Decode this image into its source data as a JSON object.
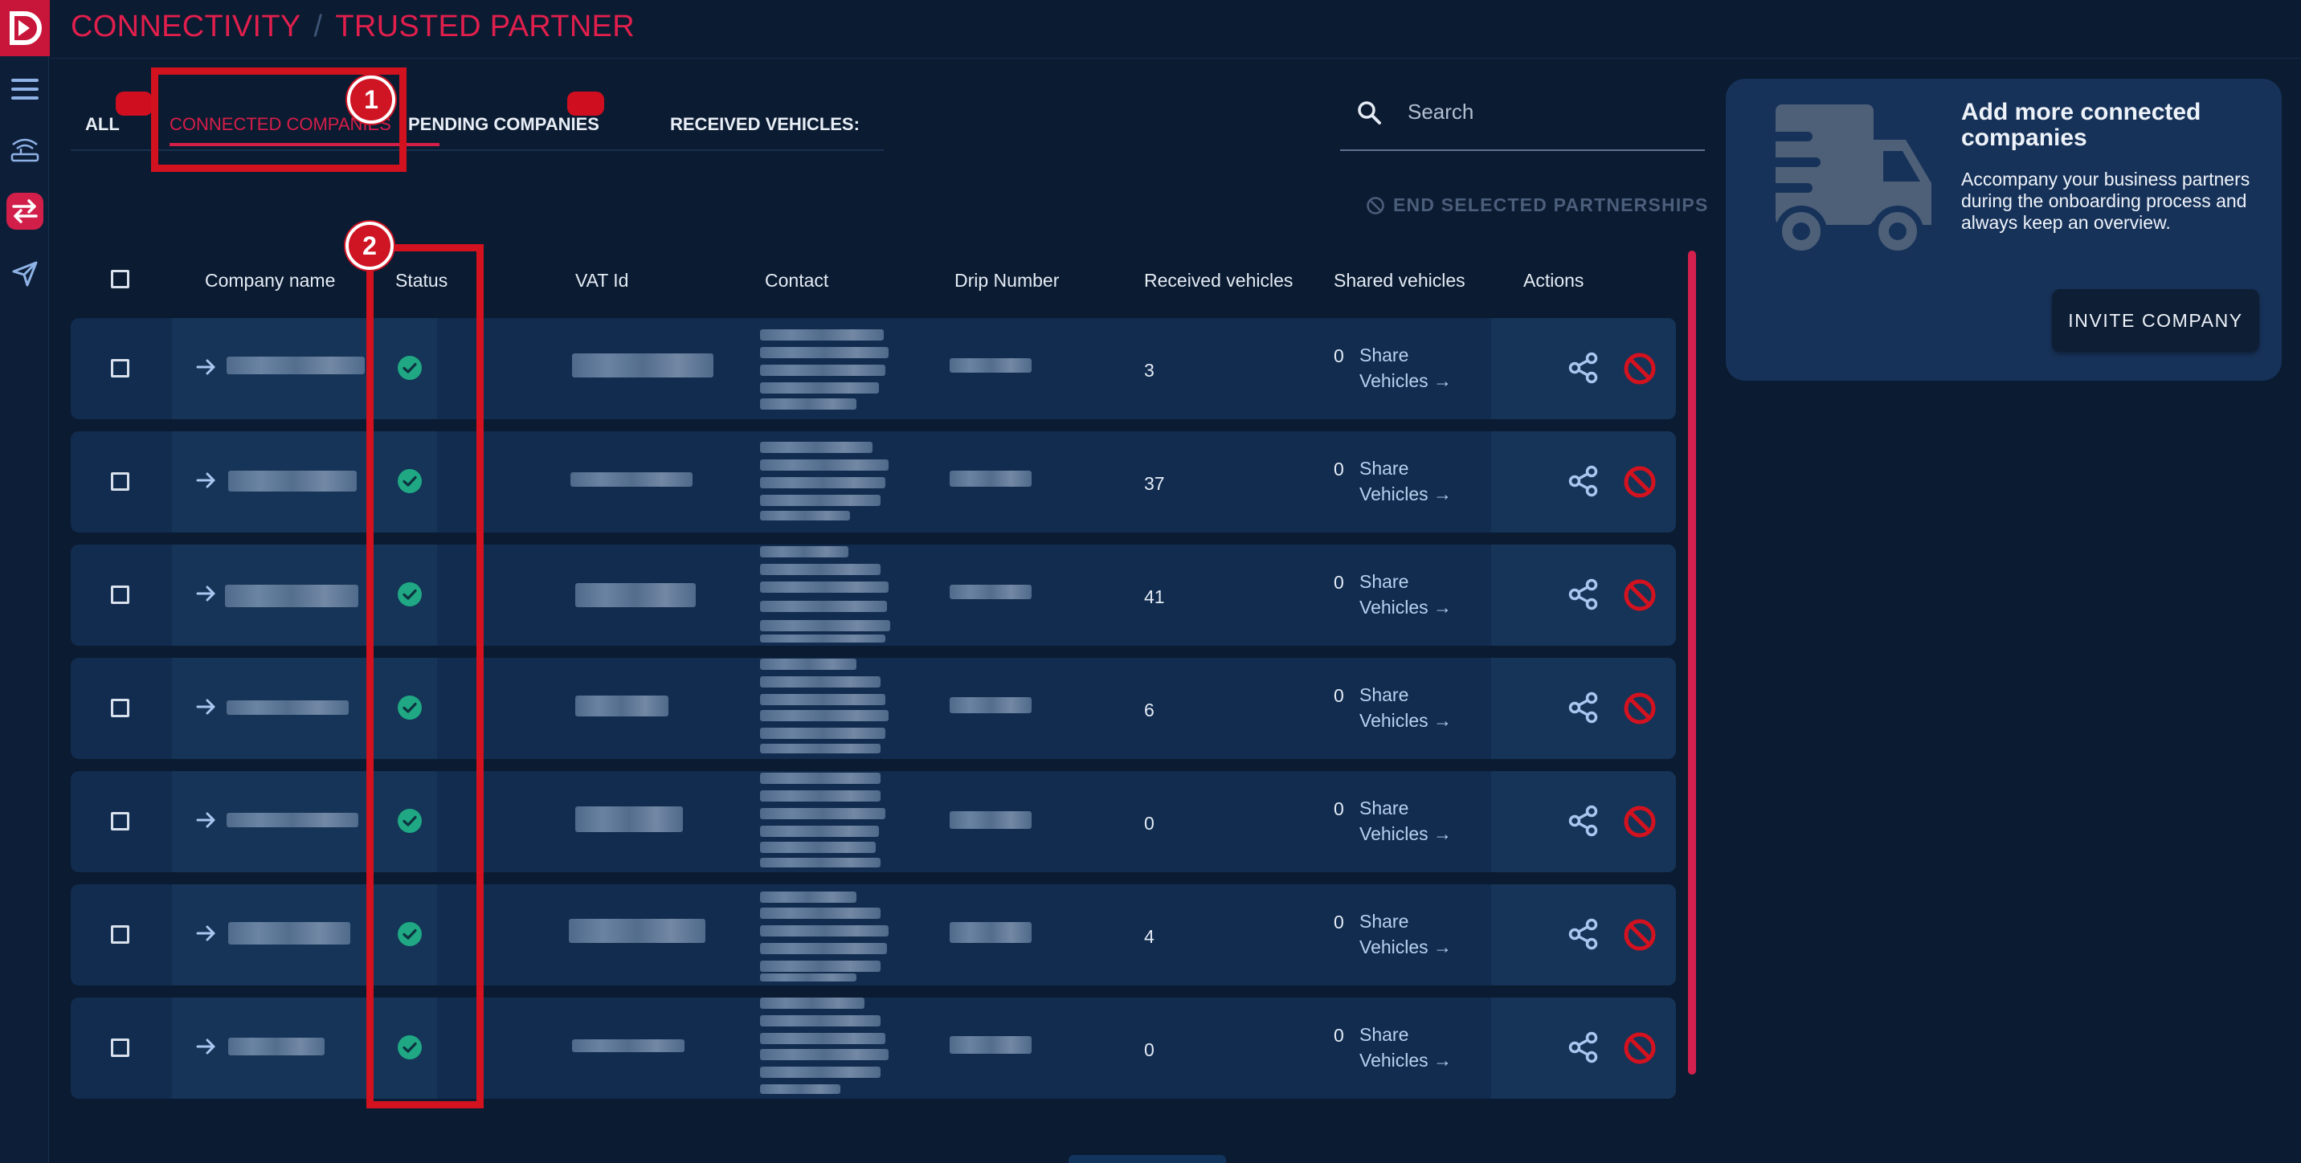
{
  "header": {
    "breadcrumb": [
      "CONNECTIVITY",
      "TRUSTED PARTNER"
    ],
    "separator": "/"
  },
  "tabs": [
    {
      "label": "ALL",
      "active": false
    },
    {
      "label": "CONNECTED COMPANIES",
      "active": true
    },
    {
      "label": "PENDING COMPANIES",
      "active": false
    },
    {
      "label": "RECEIVED VEHICLES:",
      "active": false
    }
  ],
  "search": {
    "placeholder": "Search"
  },
  "end_partnerships_label": "END SELECTED PARTNERSHIPS",
  "table": {
    "columns": [
      "Company name",
      "Status",
      "VAT Id",
      "Contact",
      "Drip Number",
      "Received vehicles",
      "Shared vehicles",
      "Actions"
    ],
    "rows": [
      {
        "status": "active",
        "received": "3",
        "shared": "0"
      },
      {
        "status": "active",
        "received": "37",
        "shared": "0"
      },
      {
        "status": "active",
        "received": "41",
        "shared": "0"
      },
      {
        "status": "active",
        "received": "6",
        "shared": "0"
      },
      {
        "status": "active",
        "received": "0",
        "shared": "0"
      },
      {
        "status": "active",
        "received": "4",
        "shared": "0"
      },
      {
        "status": "active",
        "received": "0",
        "shared": "0"
      }
    ],
    "share_label_1": "Share",
    "share_label_2": "Vehicles →"
  },
  "promo": {
    "title": "Add more connected companies",
    "text": "Accompany your business partners during the onboarding process and always keep an overview.",
    "button": "INVITE COMPANY"
  },
  "annotations": [
    "1",
    "2"
  ],
  "colors": {
    "accent": "#d61e48",
    "status_ok": "#1fa883",
    "danger": "#d4121f",
    "background": "#0b1b31"
  },
  "icons": [
    "logo-icon",
    "menu-icon",
    "connectivity-icon",
    "transfer-icon",
    "send-icon",
    "search-icon",
    "block-icon",
    "arrow-right-icon",
    "check-circle-icon",
    "share-icon",
    "truck-icon"
  ]
}
